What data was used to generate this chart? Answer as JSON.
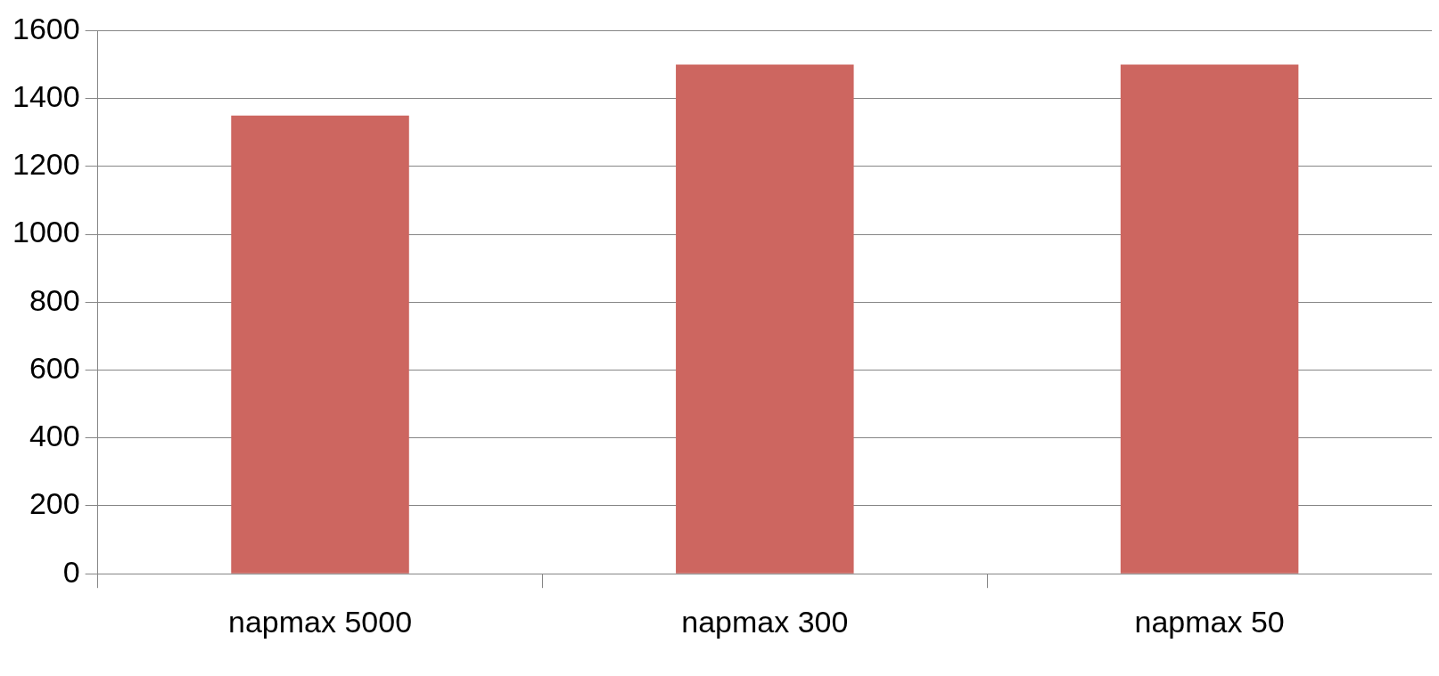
{
  "chart_data": {
    "type": "bar",
    "categories": [
      "napmax 5000",
      "napmax 300",
      "napmax 50"
    ],
    "values": [
      1350,
      1500,
      1500
    ],
    "color": "#cd6660",
    "ylim": [
      0,
      1600
    ],
    "yticks": [
      0,
      200,
      400,
      600,
      800,
      1000,
      1200,
      1400,
      1600
    ],
    "grid": "y",
    "legend": false
  }
}
